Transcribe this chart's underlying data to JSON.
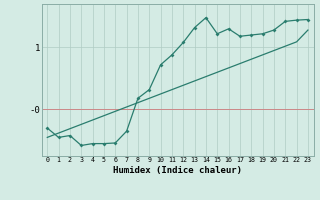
{
  "xlabel": "Humidex (Indice chaleur)",
  "bg_color": "#d4ebe4",
  "line_color": "#2a7d6e",
  "grid_color": "#b0ccc4",
  "hline_color": "#cc8888",
  "x_data": [
    0,
    1,
    2,
    3,
    4,
    5,
    6,
    7,
    8,
    9,
    10,
    11,
    12,
    13,
    14,
    15,
    16,
    17,
    18,
    19,
    20,
    21,
    22,
    23
  ],
  "y_jagged": [
    -0.3,
    -0.45,
    -0.42,
    -0.58,
    -0.55,
    -0.55,
    -0.54,
    -0.35,
    0.18,
    0.32,
    0.72,
    0.88,
    1.08,
    1.32,
    1.48,
    1.22,
    1.3,
    1.18,
    1.2,
    1.22,
    1.28,
    1.42,
    1.44,
    1.45
  ],
  "y_linear": [
    -0.45,
    -0.38,
    -0.31,
    -0.24,
    -0.17,
    -0.1,
    -0.03,
    0.04,
    0.11,
    0.18,
    0.25,
    0.32,
    0.39,
    0.46,
    0.53,
    0.6,
    0.67,
    0.74,
    0.81,
    0.88,
    0.95,
    1.02,
    1.09,
    1.28
  ],
  "ylim": [
    -0.75,
    1.7
  ],
  "xlim": [
    -0.5,
    23.5
  ],
  "yticks": [
    0,
    1
  ],
  "ytick_labels": [
    "-0",
    "1"
  ],
  "xticks": [
    0,
    1,
    2,
    3,
    4,
    5,
    6,
    7,
    8,
    9,
    10,
    11,
    12,
    13,
    14,
    15,
    16,
    17,
    18,
    19,
    20,
    21,
    22,
    23
  ]
}
